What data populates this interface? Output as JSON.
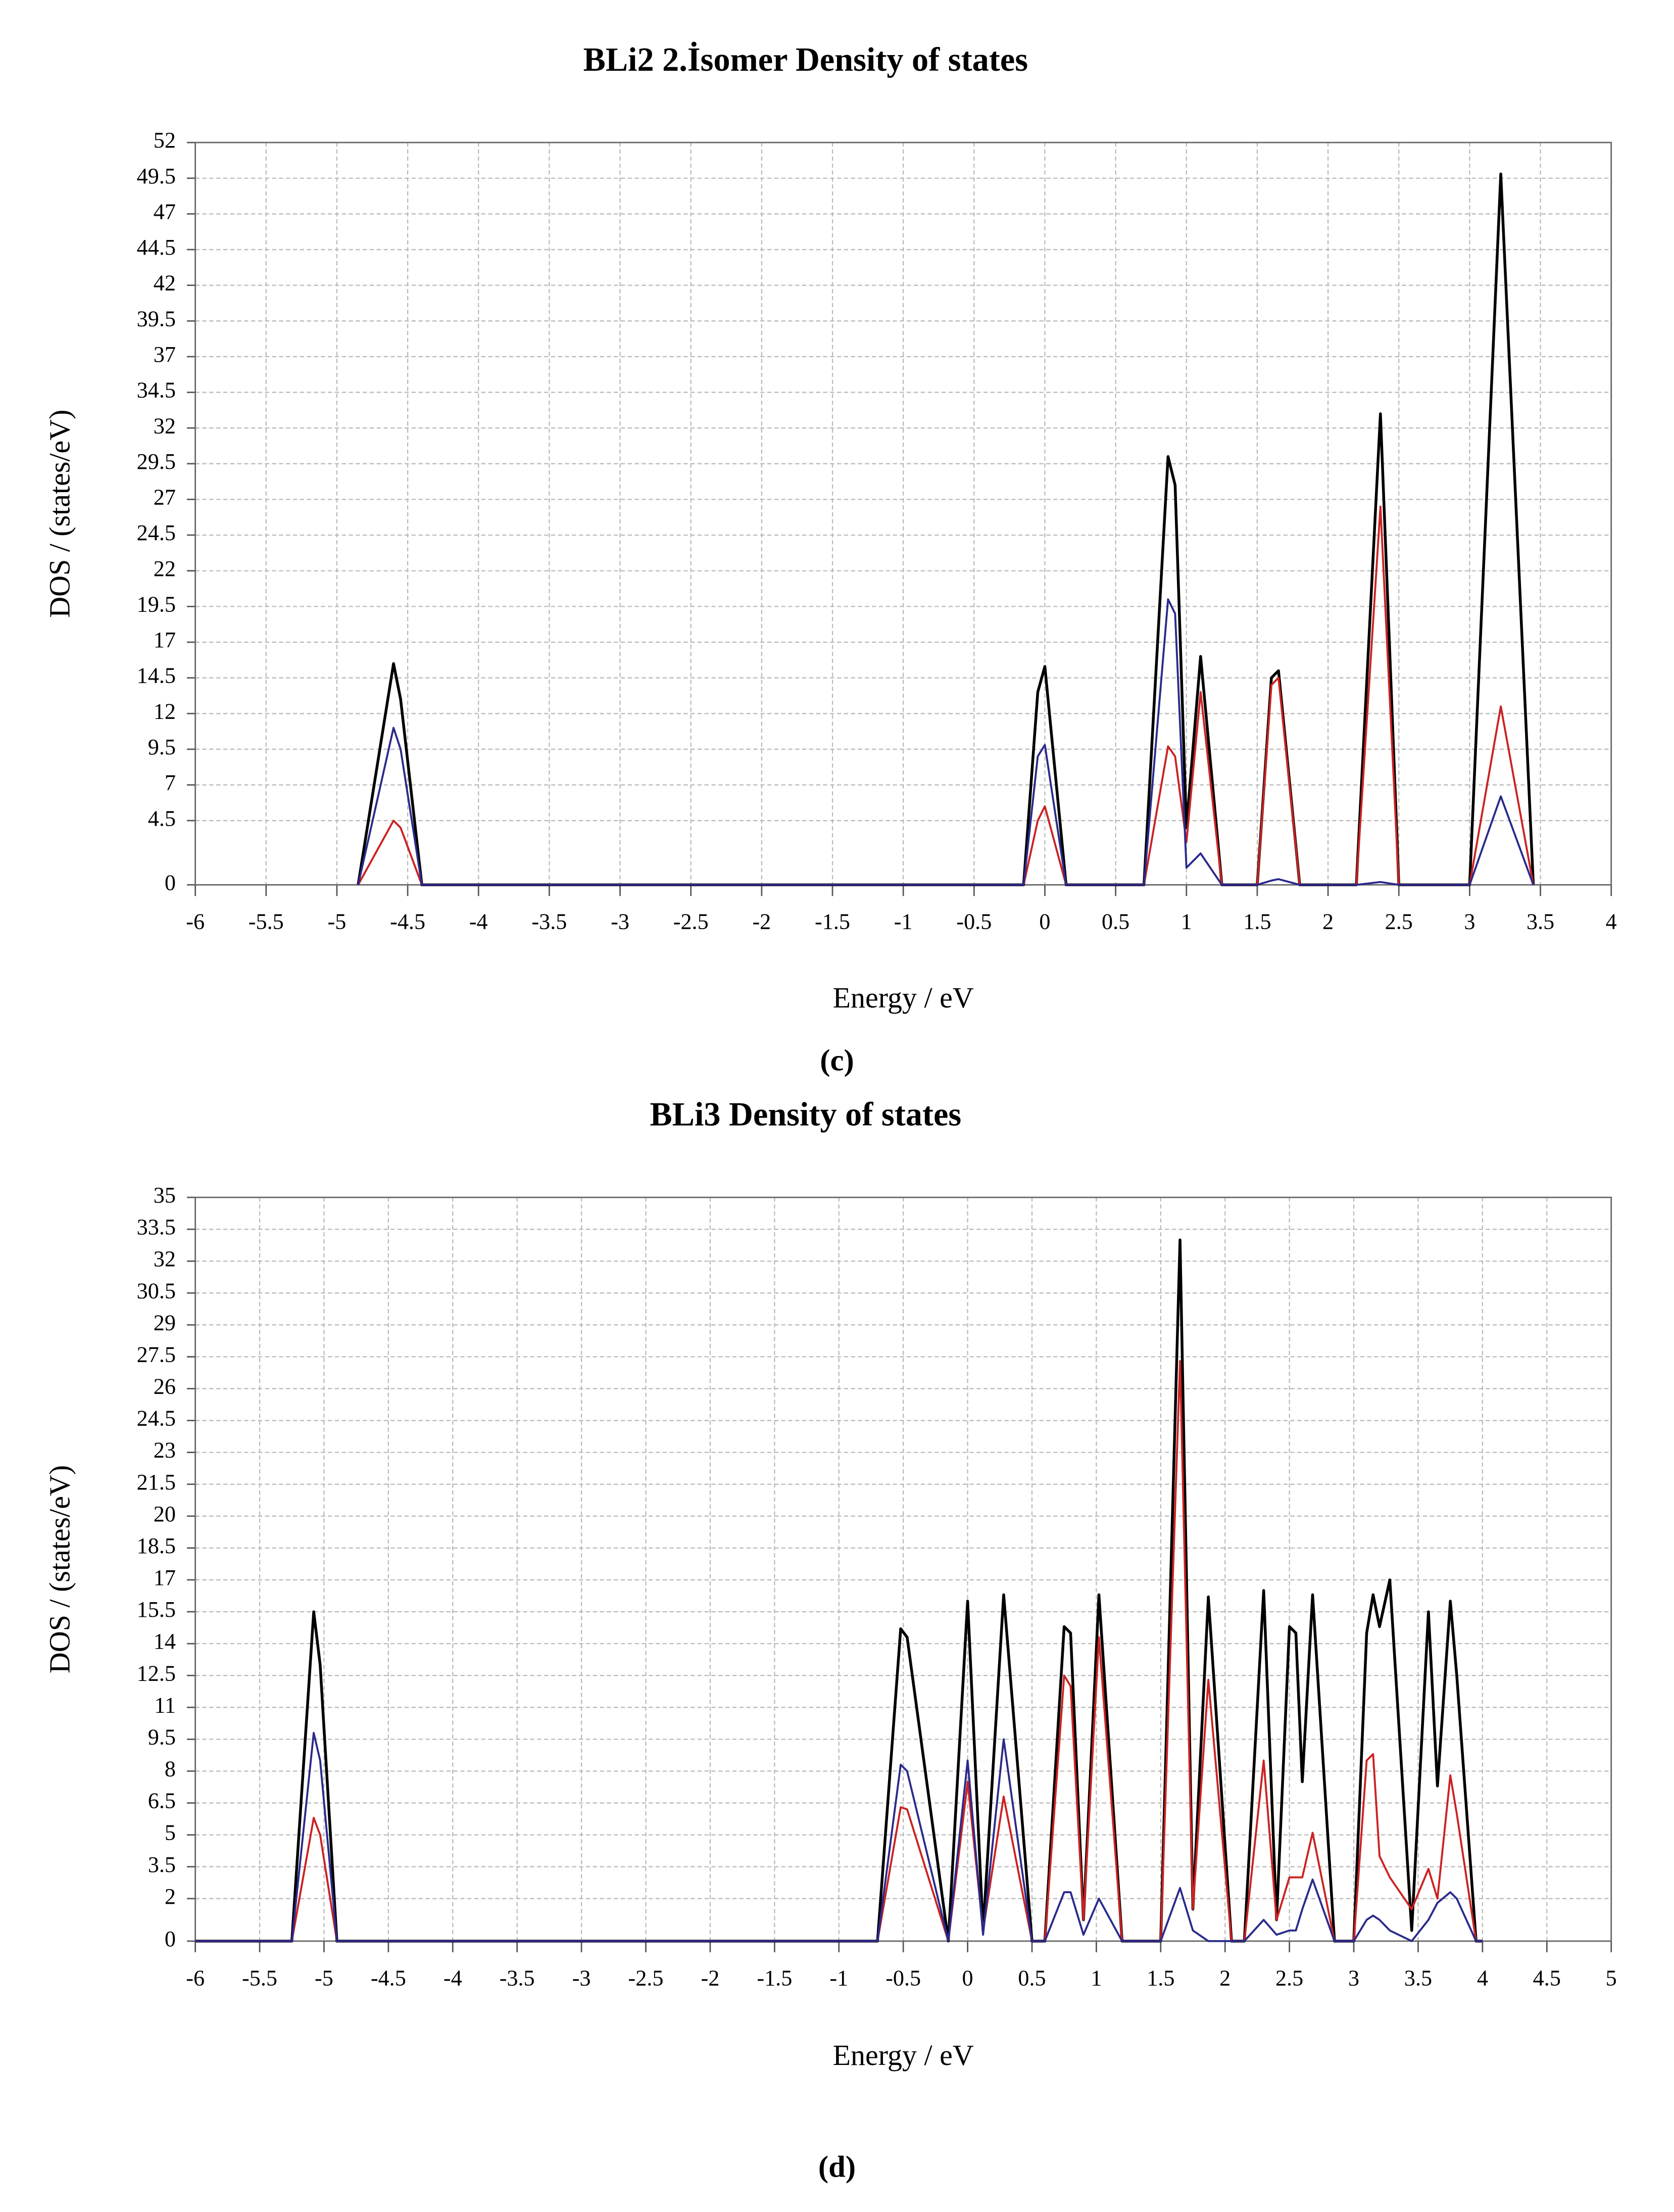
{
  "chart_data": [
    {
      "type": "line",
      "title": "BLi2  2.İsomer Density of states",
      "xlabel": "Energy / eV",
      "ylabel": "DOS / (states/eV)",
      "caption": "(c)",
      "xlim": [
        -6,
        4
      ],
      "xticks": [
        -6,
        -5.5,
        -5,
        -4.5,
        -4,
        -3.5,
        -3,
        -2.5,
        -2,
        -1.5,
        -1,
        -0.5,
        0,
        0.5,
        1,
        1.5,
        2,
        2.5,
        3,
        3.5,
        4
      ],
      "ylim": [
        0,
        52
      ],
      "yticks": [
        0,
        4.5,
        7,
        9.5,
        12,
        14.5,
        17,
        19.5,
        22,
        24.5,
        27,
        29.5,
        32,
        34.5,
        37,
        39.5,
        42,
        44.5,
        47,
        49.5,
        52
      ],
      "grid": true,
      "x": [
        -4.85,
        -4.6,
        -4.55,
        -4.4,
        -0.15,
        -0.05,
        0,
        0.15,
        0.7,
        0.87,
        0.92,
        1.0,
        1.1,
        1.25,
        1.5,
        1.6,
        1.65,
        1.8,
        2.2,
        2.37,
        2.5,
        3.0,
        3.22,
        3.45
      ],
      "series": [
        {
          "color": "#000000",
          "values": [
            0,
            15.5,
            13,
            0,
            0,
            13.5,
            15.3,
            0,
            0,
            30,
            28,
            4,
            16,
            0,
            0,
            14.5,
            15,
            0,
            0,
            33,
            0,
            0,
            49.8,
            0
          ]
        },
        {
          "color": "#cc2222",
          "values": [
            0,
            4.5,
            4,
            0,
            0,
            4.5,
            5.5,
            0,
            0,
            9.7,
            9,
            3,
            13.5,
            0,
            0,
            14,
            14.5,
            0,
            0,
            26.5,
            0,
            0,
            12.5,
            0
          ]
        },
        {
          "color": "#2a2a8c",
          "values": [
            0,
            11,
            9.5,
            0,
            0,
            9,
            9.8,
            0,
            0,
            20,
            19,
            1.2,
            2.2,
            0,
            0,
            0.3,
            0.4,
            0,
            0,
            0.2,
            0,
            0,
            6.2,
            0
          ]
        }
      ]
    },
    {
      "type": "line",
      "title": "BLi3  Density of states",
      "xlabel": "Energy / eV",
      "ylabel": "DOS / (states/eV)",
      "caption": "(d)",
      "xlim": [
        -6,
        5
      ],
      "xticks": [
        -6,
        -5.5,
        -5,
        -4.5,
        -4,
        -3.5,
        -3,
        -2.5,
        -2,
        -1.5,
        -1,
        -0.5,
        0,
        0.5,
        1,
        1.5,
        2,
        2.5,
        3,
        3.5,
        4,
        4.5,
        5
      ],
      "ylim": [
        0,
        35
      ],
      "yticks": [
        0,
        2,
        3.5,
        5,
        6.5,
        8,
        9.5,
        11,
        12.5,
        14,
        15.5,
        17,
        18.5,
        20,
        21.5,
        23,
        24.5,
        26,
        27.5,
        29,
        30.5,
        32,
        33.5,
        35
      ],
      "grid": true,
      "x": [
        -6,
        -5.25,
        -5.08,
        -5.03,
        -4.9,
        -0.7,
        -0.52,
        -0.47,
        -0.15,
        0,
        0.12,
        0.28,
        0.5,
        0.6,
        0.75,
        0.8,
        0.9,
        1.02,
        1.2,
        1.5,
        1.65,
        1.75,
        1.87,
        2.05,
        2.15,
        2.3,
        2.4,
        2.5,
        2.55,
        2.6,
        2.68,
        2.85,
        3.0,
        3.1,
        3.15,
        3.2,
        3.28,
        3.45,
        3.58,
        3.65,
        3.75,
        3.8,
        3.95,
        4
      ],
      "series": [
        {
          "color": "#000000",
          "values": [
            0,
            0,
            15.5,
            13,
            0,
            0,
            14.7,
            14.3,
            0,
            16,
            0.5,
            16.3,
            0,
            0,
            14.8,
            14.5,
            1,
            16.3,
            0,
            0,
            33,
            1.5,
            16.2,
            0,
            0,
            16.5,
            1,
            14.8,
            14.5,
            7.5,
            16.3,
            0,
            0,
            14.5,
            16.3,
            14.8,
            17,
            0.5,
            15.5,
            7.3,
            16,
            12.5,
            0,
            0
          ]
        },
        {
          "color": "#cc2222",
          "values": [
            0,
            0,
            5.8,
            5,
            0,
            0,
            6.3,
            6.2,
            0,
            7.5,
            0.5,
            6.8,
            0,
            0,
            12.5,
            12,
            1,
            14.3,
            0,
            0,
            27.3,
            1.5,
            12.3,
            0,
            0,
            8.5,
            1,
            3,
            3,
            3,
            5.1,
            0,
            0,
            8.5,
            8.8,
            4,
            3,
            1.5,
            3.4,
            2,
            7.8,
            6,
            0,
            0
          ]
        },
        {
          "color": "#2a2a8c",
          "values": [
            0,
            0,
            9.8,
            8.5,
            0,
            0,
            8.3,
            8,
            0,
            8.5,
            0.3,
            9.5,
            0,
            0,
            2.3,
            2.3,
            0.3,
            2,
            0,
            0,
            2.5,
            0.5,
            0,
            0,
            0,
            1,
            0.3,
            0.5,
            0.5,
            1.5,
            2.9,
            0,
            0,
            1,
            1.2,
            1,
            0.5,
            0,
            1,
            1.8,
            2.3,
            2,
            0,
            0
          ]
        }
      ]
    }
  ]
}
